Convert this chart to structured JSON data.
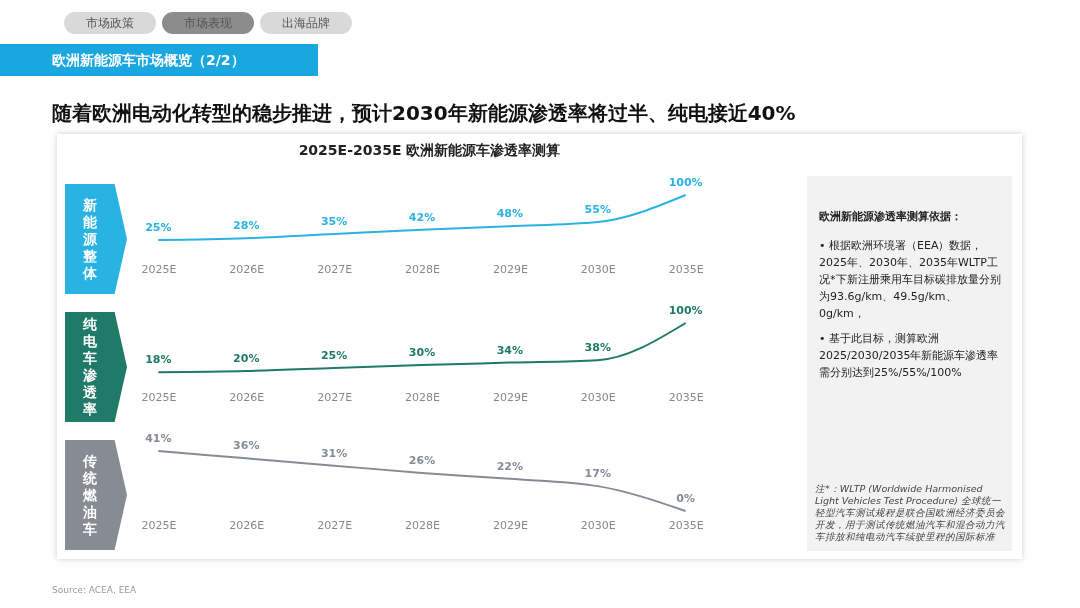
{
  "chart_data": [
    {
      "type": "line",
      "title": "2025E-2035E 欧洲新能源车渗透率测算",
      "subtitle": "随着欧洲电动化转型的稳步推进，预计2030年新能源渗透率将过半、纯电接近40%",
      "ylabel": "新能源整体",
      "categories": [
        "2025E",
        "2026E",
        "2027E",
        "2028E",
        "2029E",
        "2030E",
        "2035E"
      ],
      "series": [
        {
          "color": "#29b3e3",
          "values": [
            25,
            28,
            35,
            42,
            48,
            55,
            100
          ],
          "value_labels": [
            "25%",
            "28%",
            "35%",
            "42%",
            "48%",
            "55%",
            "100%"
          ]
        }
      ],
      "annotations": [
        "市场政策",
        "市场表现",
        "出海品牌",
        "欧洲新能源车市场概览（2/2）",
        "欧洲新能源渗透率测算依据：",
        "• 根据欧洲环境署（EEA）数据，2025年、2030年、2035年WLTP工况*下新注册乘用车目标碳排放量分别为93.6g/km、49.5g/km、0g/km，",
        "• 基于此目标，测算欧洲2025/2030/2035年新能源车渗透率需分别达到25%/55%/100%",
        "注*：WLTP (Worldwide Harmonised Light Vehicles Test Procedure) 全球统一轻型汽车测试规程是联合国欧洲经济委员会开发，用于测试传统燃油汽车和混合动力汽车排放和纯电动汽车续驶里程的国际标准",
        "Source: ACEA, EEA"
      ]
    },
    {
      "type": "line",
      "ylabel": "纯电车渗透率",
      "categories": [
        "2025E",
        "2026E",
        "2027E",
        "2028E",
        "2029E",
        "2030E",
        "2035E"
      ],
      "series": [
        {
          "color": "#1f7a68",
          "values": [
            18,
            20,
            25,
            30,
            34,
            38,
            100
          ],
          "value_labels": [
            "18%",
            "20%",
            "25%",
            "30%",
            "34%",
            "38%",
            "100%"
          ]
        }
      ]
    },
    {
      "type": "line",
      "ylabel": "传统燃油车",
      "categories": [
        "2025E",
        "2026E",
        "2027E",
        "2028E",
        "2029E",
        "2030E",
        "2035E"
      ],
      "series": [
        {
          "color": "#868b94",
          "values": [
            41,
            36,
            31,
            26,
            22,
            17,
            0
          ],
          "value_labels": [
            "41%",
            "36%",
            "31%",
            "26%",
            "22%",
            "17%",
            "0%"
          ]
        }
      ]
    }
  ]
}
